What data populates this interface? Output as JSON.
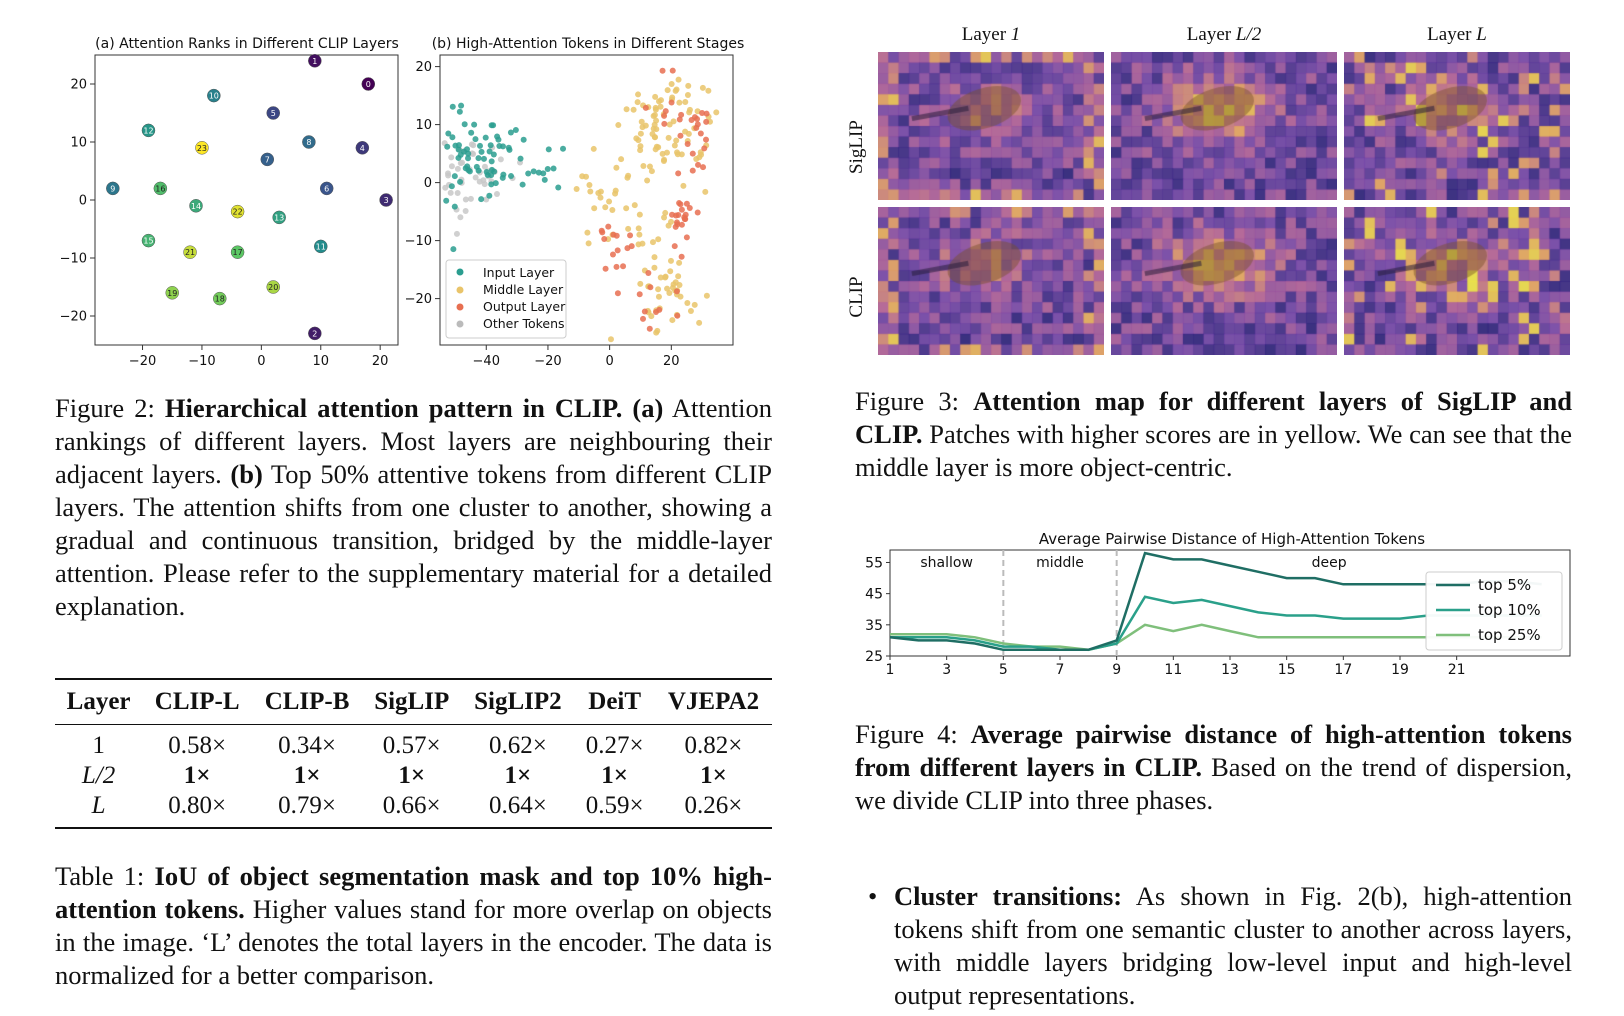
{
  "fig2": {
    "panel_a_title": "(a) Attention Ranks in Different CLIP Layers",
    "panel_b_title": "(b) High-Attention Tokens in Different Stages",
    "legend": [
      "Input Layer",
      "Middle Layer",
      "Output Layer",
      "Other Tokens"
    ],
    "caption_label": "Figure 2:",
    "caption_bold": "Hierarchical attention pattern in CLIP.",
    "caption_a": "(a)",
    "caption_text1": "Attention rankings of different layers. Most layers are neighbouring their adjacent layers.",
    "caption_b": "(b)",
    "caption_text2": "Top 50% attentive tokens from different CLIP layers. The attention shifts from one cluster to another, showing a gradual and continuous transition, bridged by the middle-layer attention. Please refer to the supplementary material for a detailed explanation."
  },
  "fig3": {
    "col_titles": [
      "Layer 1",
      "Layer L/2",
      "Layer L"
    ],
    "row_titles": [
      "SigLIP",
      "CLIP"
    ],
    "caption_label": "Figure 3:",
    "caption_bold": "Attention map for different layers of SigLIP and CLIP.",
    "caption_text": "Patches with higher scores are in yellow. We can see that the middle layer is more object-centric."
  },
  "fig4": {
    "caption_label": "Figure 4:",
    "caption_bold": "Average pairwise distance of high-attention tokens from different layers in CLIP.",
    "caption_text": "Based on the trend of dispersion, we divide CLIP into three phases."
  },
  "table1": {
    "headers": [
      "Layer",
      "CLIP-L",
      "CLIP-B",
      "SigLIP",
      "SigLIP2",
      "DeiT",
      "VJEPA2"
    ],
    "rows": [
      [
        "1",
        "0.58×",
        "0.34×",
        "0.57×",
        "0.62×",
        "0.27×",
        "0.82×"
      ],
      [
        "L/2",
        "1×",
        "1×",
        "1×",
        "1×",
        "1×",
        "1×"
      ],
      [
        "L",
        "0.80×",
        "0.79×",
        "0.66×",
        "0.64×",
        "0.59×",
        "0.26×"
      ]
    ],
    "caption_label": "Table 1:",
    "caption_bold": "IoU of object segmentation mask and top 10% high-attention tokens.",
    "caption_text": "Higher values stand for more overlap on objects in the image. ‘L’ denotes the total layers in the encoder. The data is normalized for a better comparison."
  },
  "bullet": {
    "title": "Cluster transitions:",
    "text": "As shown in Fig. 2(b), high-attention tokens shift from one semantic cluster to another across layers, with middle layers bridging low-level input and high-level output representations."
  },
  "chart_data": [
    {
      "type": "scatter",
      "title": "(a) Attention Ranks in Different CLIP Layers",
      "xlim": [
        -28,
        23
      ],
      "ylim": [
        -25,
        25
      ],
      "xticks": [
        -20,
        -10,
        0,
        10,
        20
      ],
      "yticks": [
        -20,
        -10,
        0,
        10,
        20
      ],
      "grid": false,
      "points": [
        {
          "label": "0",
          "x": 18,
          "y": 20
        },
        {
          "label": "1",
          "x": 9,
          "y": 24
        },
        {
          "label": "2",
          "x": 9,
          "y": -23
        },
        {
          "label": "3",
          "x": 21,
          "y": 0
        },
        {
          "label": "4",
          "x": 17,
          "y": 9
        },
        {
          "label": "5",
          "x": 2,
          "y": 15
        },
        {
          "label": "6",
          "x": 11,
          "y": 2
        },
        {
          "label": "7",
          "x": 1,
          "y": 7
        },
        {
          "label": "8",
          "x": 8,
          "y": 10
        },
        {
          "label": "9",
          "x": -25,
          "y": 2
        },
        {
          "label": "10",
          "x": -8,
          "y": 18
        },
        {
          "label": "11",
          "x": 10,
          "y": -8
        },
        {
          "label": "12",
          "x": -19,
          "y": 12
        },
        {
          "label": "13",
          "x": 3,
          "y": -3
        },
        {
          "label": "14",
          "x": -11,
          "y": -1
        },
        {
          "label": "15",
          "x": -19,
          "y": -7
        },
        {
          "label": "16",
          "x": -17,
          "y": 2
        },
        {
          "label": "17",
          "x": -4,
          "y": -9
        },
        {
          "label": "18",
          "x": -7,
          "y": -17
        },
        {
          "label": "19",
          "x": -15,
          "y": -16
        },
        {
          "label": "20",
          "x": 2,
          "y": -15
        },
        {
          "label": "21",
          "x": -12,
          "y": -9
        },
        {
          "label": "22",
          "x": -4,
          "y": -2
        },
        {
          "label": "23",
          "x": -10,
          "y": 9
        }
      ]
    },
    {
      "type": "scatter",
      "title": "(b) High-Attention Tokens in Different Stages",
      "xlim": [
        -55,
        40
      ],
      "ylim": [
        -28,
        22
      ],
      "xticks": [
        -40,
        -20,
        0,
        20
      ],
      "yticks": [
        -20,
        -10,
        0,
        10,
        20
      ],
      "grid": false,
      "series": [
        {
          "name": "Input Layer",
          "color": "#2a9d8f",
          "clusters": [
            {
              "cx": -42,
              "cy": 5,
              "sx": 7,
              "sy": 3.5,
              "n": 70
            },
            {
              "cx": -20,
              "cy": 2,
              "sx": 4,
              "sy": 2,
              "n": 10
            }
          ]
        },
        {
          "name": "Middle Layer",
          "color": "#e9c46a",
          "clusters": [
            {
              "cx": 18,
              "cy": 9,
              "sx": 9,
              "sy": 5,
              "n": 90
            },
            {
              "cx": 8,
              "cy": -7,
              "sx": 7,
              "sy": 4,
              "n": 25
            },
            {
              "cx": 18,
              "cy": -20,
              "sx": 6,
              "sy": 4,
              "n": 40
            },
            {
              "cx": -5,
              "cy": 0,
              "sx": 4,
              "sy": 2,
              "n": 8
            }
          ]
        },
        {
          "name": "Output Layer",
          "color": "#e76f51",
          "clusters": [
            {
              "cx": 24,
              "cy": -6,
              "sx": 3,
              "sy": 2,
              "n": 20
            },
            {
              "cx": 28,
              "cy": 8,
              "sx": 3,
              "sy": 4,
              "n": 15
            },
            {
              "cx": 18,
              "cy": 12,
              "sx": 6,
              "sy": 4,
              "n": 12
            },
            {
              "cx": 2,
              "cy": -12,
              "sx": 3,
              "sy": 3,
              "n": 15
            },
            {
              "cx": 16,
              "cy": -21,
              "sx": 3,
              "sy": 3,
              "n": 10
            }
          ]
        },
        {
          "name": "Other Tokens",
          "color": "#c8c8c8",
          "clusters": [
            {
              "cx": -45,
              "cy": 1,
              "sx": 7,
              "sy": 4,
              "n": 50
            }
          ]
        }
      ]
    },
    {
      "type": "line",
      "title": "Average Pairwise Distance of High-Attention Tokens",
      "x": [
        1,
        2,
        3,
        4,
        5,
        6,
        7,
        8,
        9,
        10,
        11,
        12,
        13,
        14,
        15,
        16,
        17,
        18,
        19,
        20,
        21,
        22,
        23,
        24
      ],
      "xticks": [
        1,
        3,
        5,
        7,
        9,
        11,
        13,
        15,
        17,
        19,
        21
      ],
      "yticks": [
        25,
        35,
        45,
        55
      ],
      "ylim": [
        25,
        59
      ],
      "phases": [
        {
          "label": "shallow",
          "from": 1,
          "to": 5
        },
        {
          "label": "middle",
          "from": 5,
          "to": 9
        },
        {
          "label": "deep",
          "from": 9,
          "to": 24
        }
      ],
      "series": [
        {
          "name": "top 5%",
          "color": "#1f6e64",
          "values": [
            31,
            30,
            30,
            29,
            27,
            27,
            27,
            27,
            30,
            58,
            56,
            56,
            54,
            52,
            50,
            50,
            48,
            48,
            48,
            48,
            48,
            49,
            49,
            48
          ]
        },
        {
          "name": "top 10%",
          "color": "#2aa08a",
          "values": [
            31,
            31,
            31,
            30,
            28,
            28,
            27,
            27,
            29,
            44,
            42,
            43,
            41,
            39,
            38,
            38,
            37,
            37,
            37,
            38,
            38,
            38,
            38,
            38
          ]
        },
        {
          "name": "top 25%",
          "color": "#7fbf7b",
          "values": [
            32,
            32,
            32,
            31,
            29,
            28,
            28,
            27,
            29,
            35,
            33,
            35,
            33,
            31,
            31,
            31,
            31,
            31,
            31,
            31,
            31,
            31,
            31,
            31
          ]
        }
      ]
    }
  ]
}
